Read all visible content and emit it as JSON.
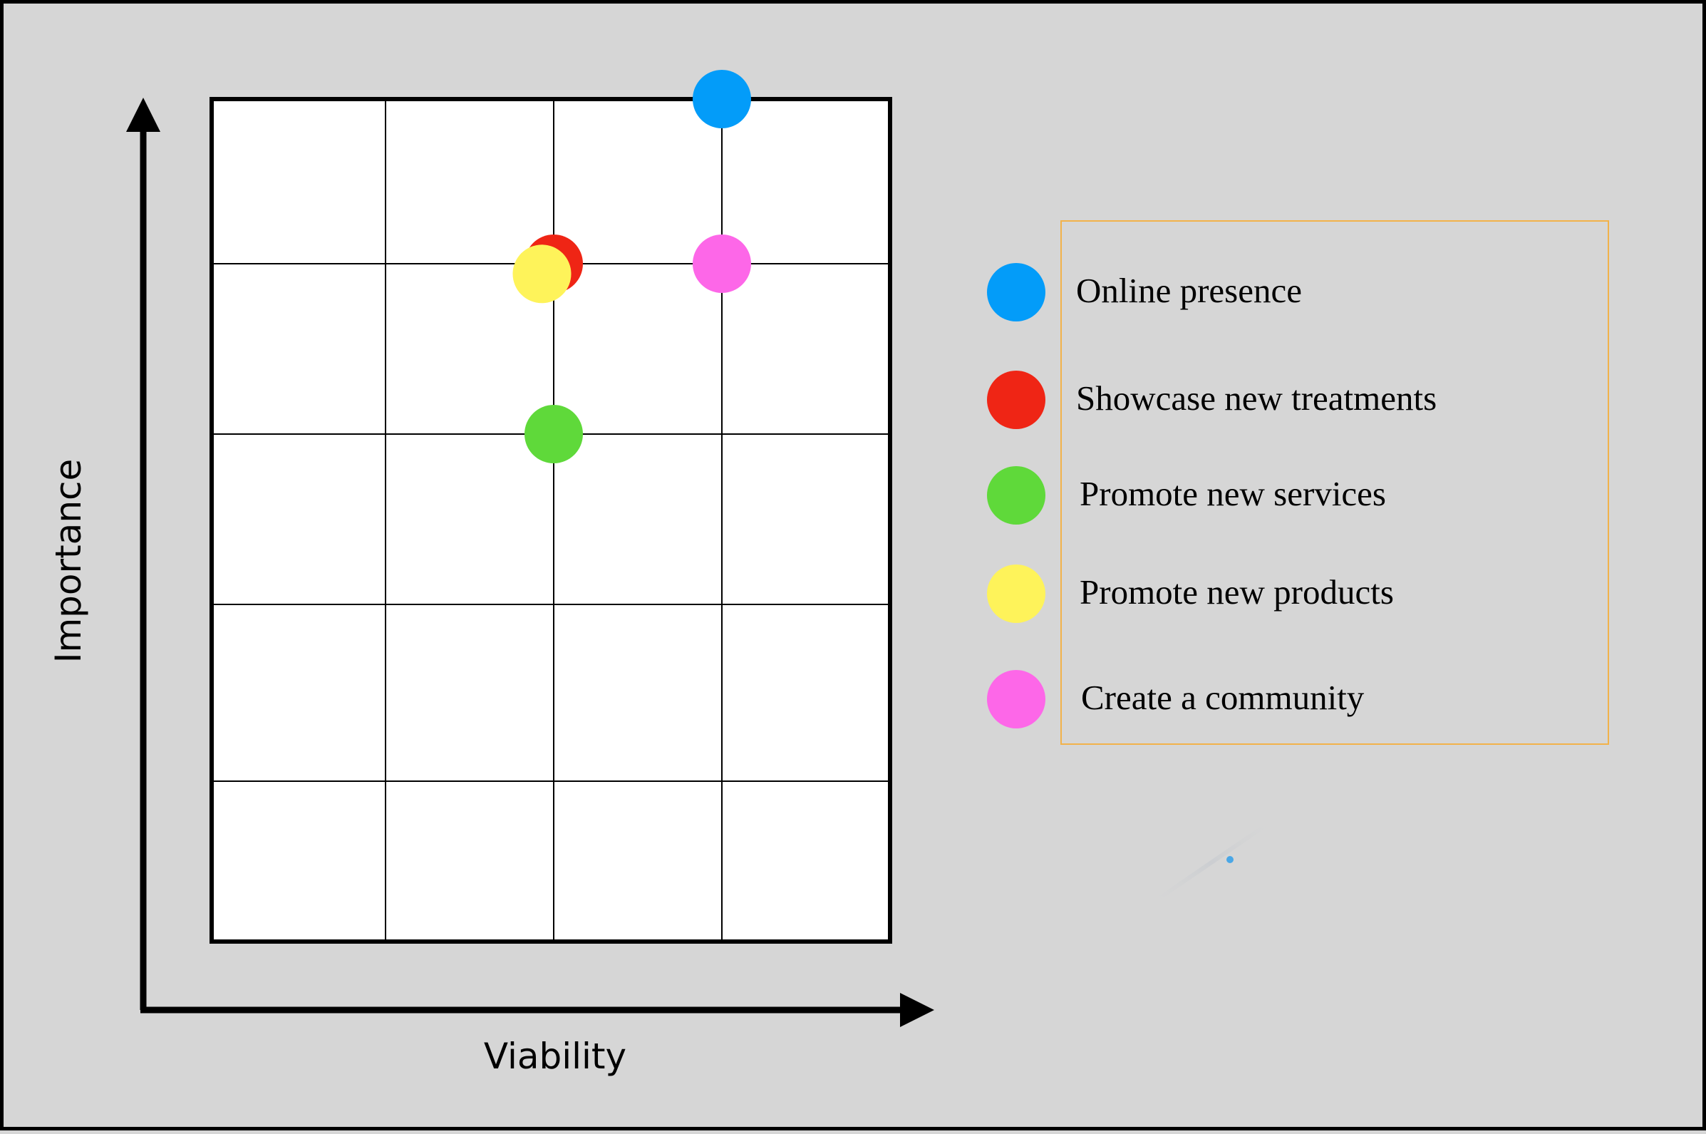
{
  "chart_data": {
    "type": "scatter",
    "xlabel": "Viability",
    "ylabel": "Importance",
    "xlim": [
      0,
      4
    ],
    "ylim": [
      0,
      5
    ],
    "grid": true,
    "legend_position": "right",
    "series": [
      {
        "name": "Online presence",
        "color": "#039cf9",
        "x": [
          3
        ],
        "y": [
          5
        ]
      },
      {
        "name": "Showcase new treatments",
        "color": "#ef2515",
        "x": [
          2
        ],
        "y": [
          4
        ]
      },
      {
        "name": "Promote new services",
        "color": "#5fd93a",
        "x": [
          2
        ],
        "y": [
          3
        ]
      },
      {
        "name": "Promote new products",
        "color": "#fef35a",
        "x": [
          1.93
        ],
        "y": [
          3.94
        ]
      },
      {
        "name": "Create a community",
        "color": "#fd67e8",
        "x": [
          3
        ],
        "y": [
          4
        ]
      }
    ]
  },
  "colors": {
    "background": "#d6d6d6",
    "plot_fill": "#ffffff",
    "legend_border": "#f2b24a"
  }
}
